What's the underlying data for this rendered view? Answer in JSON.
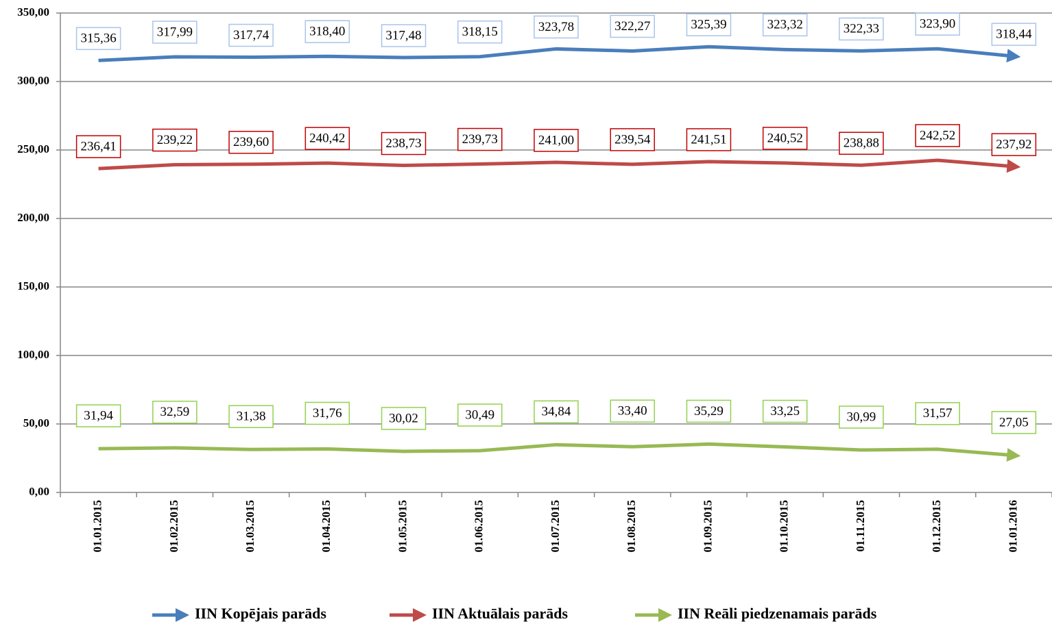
{
  "chart_data": {
    "type": "line",
    "categories": [
      "01.01.2015",
      "01.02.2015",
      "01.03.2015",
      "01.04.2015",
      "01.05.2015",
      "01.06.2015",
      "01.07.2015",
      "01.08.2015",
      "01.09.2015",
      "01.10.2015",
      "01.11.2015",
      "01.12.2015",
      "01.01.2016"
    ],
    "series": [
      {
        "name": "IIN Kopējais parāds",
        "color": "#4a7ebb",
        "box": "#a9c4e9",
        "values": [
          315.36,
          317.99,
          317.74,
          318.4,
          317.48,
          318.15,
          323.78,
          322.27,
          325.39,
          323.32,
          322.33,
          323.9,
          318.44
        ],
        "value_labels": [
          "315,36",
          "317,99",
          "317,74",
          "318,40",
          "317,48",
          "318,15",
          "323,78",
          "322,27",
          "325,39",
          "323,32",
          "322,33",
          "323,90",
          "318,44"
        ]
      },
      {
        "name": "IIN Aktuālais parāds",
        "color": "#be4b48",
        "box": "#c00000",
        "values": [
          236.41,
          239.22,
          239.6,
          240.42,
          238.73,
          239.73,
          241.0,
          239.54,
          241.51,
          240.52,
          238.88,
          242.52,
          237.92
        ],
        "value_labels": [
          "236,41",
          "239,22",
          "239,60",
          "240,42",
          "238,73",
          "239,73",
          "241,00",
          "239,54",
          "241,51",
          "240,52",
          "238,88",
          "242,52",
          "237,92"
        ]
      },
      {
        "name": "IIN Reāli piedzenamais parāds",
        "color": "#98b954",
        "box": "#92d050",
        "values": [
          31.94,
          32.59,
          31.38,
          31.76,
          30.02,
          30.49,
          34.84,
          33.4,
          35.29,
          33.25,
          30.99,
          31.57,
          27.05
        ],
        "value_labels": [
          "31,94",
          "32,59",
          "31,38",
          "31,76",
          "30,02",
          "30,49",
          "34,84",
          "33,40",
          "35,29",
          "33,25",
          "30,99",
          "31,57",
          "27,05"
        ]
      }
    ],
    "ylim": [
      0,
      350
    ],
    "yticks": [
      {
        "value": 0,
        "label": "0,00"
      },
      {
        "value": 50,
        "label": "50,00"
      },
      {
        "value": 100,
        "label": "100,00"
      },
      {
        "value": 150,
        "label": "150,00"
      },
      {
        "value": 200,
        "label": "200,00"
      },
      {
        "value": 250,
        "label": "250,00"
      },
      {
        "value": 300,
        "label": "300,00"
      },
      {
        "value": 350,
        "label": "350,00"
      }
    ],
    "grid": true,
    "legend": "bottom"
  }
}
